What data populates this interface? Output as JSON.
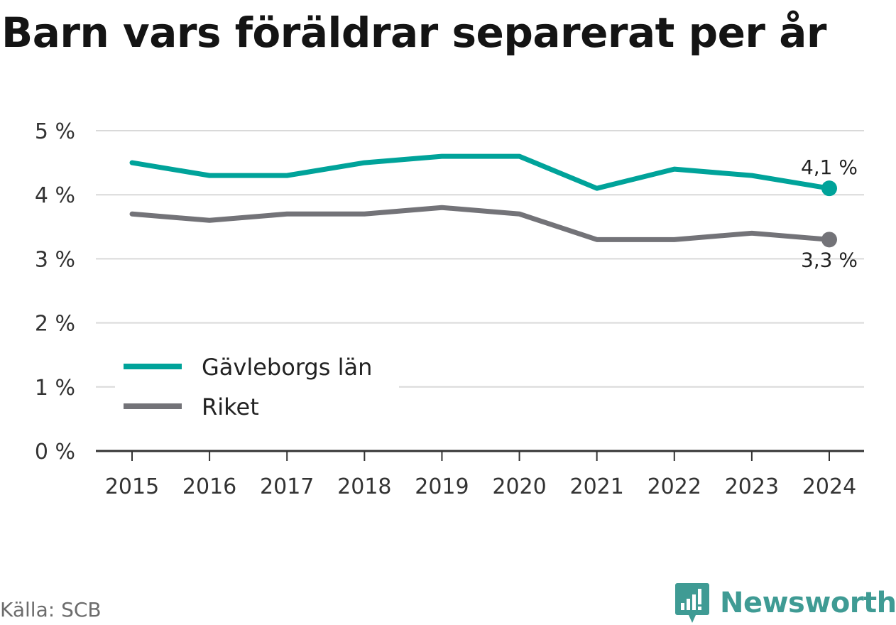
{
  "page": {
    "title": "Barn vars föräldrar separerat per år",
    "source": "Källa: SCB",
    "brand": "Newsworthy",
    "brand_icon": "newsworthy-logo-icon"
  },
  "chart_data": {
    "type": "line",
    "title": "Barn vars föräldrar separerat per år",
    "x": [
      2015,
      2016,
      2017,
      2018,
      2019,
      2020,
      2021,
      2022,
      2023,
      2024
    ],
    "y_ticks": [
      0,
      1,
      2,
      3,
      4,
      5
    ],
    "y_tick_labels": [
      "0 %",
      "1 %",
      "2 %",
      "3 %",
      "4 %",
      "5 %"
    ],
    "ylim": [
      0,
      5
    ],
    "grid": true,
    "legend_position": "bottom-left",
    "series": [
      {
        "name": "Gävleborgs län",
        "color": "#00a39a",
        "values": [
          4.5,
          4.3,
          4.3,
          4.5,
          4.6,
          4.6,
          4.1,
          4.4,
          4.3,
          4.1
        ],
        "end_label": "4,1 %"
      },
      {
        "name": "Riket",
        "color": "#737378",
        "values": [
          3.7,
          3.6,
          3.7,
          3.7,
          3.8,
          3.7,
          3.3,
          3.3,
          3.4,
          3.3
        ],
        "end_label": "3,3 %"
      }
    ]
  }
}
